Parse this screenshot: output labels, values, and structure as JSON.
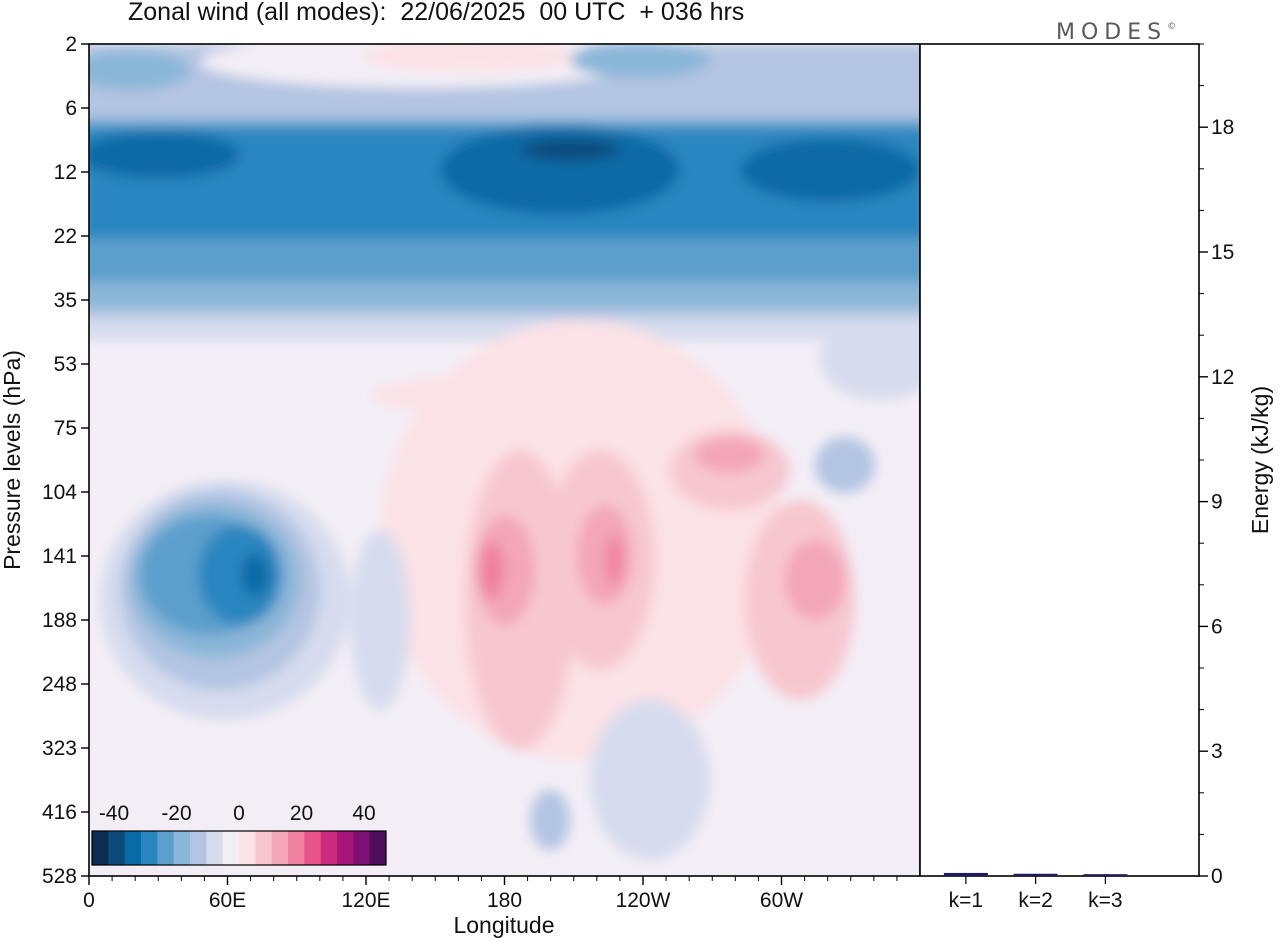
{
  "title": "Zonal wind (all modes):  22/06/2025  00 UTC  + 036 hrs",
  "logo": "MODES",
  "logo_mark": "©",
  "chart_data": [
    {
      "type": "heatmap",
      "title": "Zonal wind (all modes):  22/06/2025  00 UTC  + 036 hrs",
      "xlabel": "Longitude",
      "ylabel": "Pressure levels (hPa)",
      "x_ticks": [
        "0",
        "60E",
        "120E",
        "180",
        "120W",
        "60W"
      ],
      "y_ticks": [
        "2",
        "6",
        "12",
        "22",
        "35",
        "53",
        "75",
        "104",
        "141",
        "188",
        "248",
        "323",
        "416",
        "528"
      ],
      "y_scale": "log",
      "colorbar": {
        "labels": [
          "-40",
          "-20",
          "0",
          "20",
          "40"
        ],
        "colors": [
          "#0b2d4f",
          "#0c4a7c",
          "#0a6aa6",
          "#2a86c0",
          "#5c9fcc",
          "#8ab6d8",
          "#b3c5e2",
          "#d6dcee",
          "#f3eef6",
          "#fbe2e6",
          "#f7c7cf",
          "#f3a6b7",
          "#ef80a0",
          "#e6548b",
          "#cc2a7e",
          "#a8157a",
          "#7e0f74",
          "#4d0c5c"
        ]
      },
      "features": [
        {
          "name": "stratospheric easterly jet",
          "pressure_hPa": [
            6,
            35
          ],
          "longitude": "all",
          "u": "-10 to -35"
        },
        {
          "name": "easterly core",
          "pressure_hPa": [
            104,
            248
          ],
          "longitude": "40E-90E",
          "u": "about -30"
        },
        {
          "name": "westerly maxima",
          "pressure_hPa": [
            104,
            248
          ],
          "longitude": "170E-60W",
          "u": "about +20"
        }
      ]
    },
    {
      "type": "bar",
      "ylabel": "Energy (kJ/kg)",
      "categories": [
        "k=1",
        "k=2",
        "k=3"
      ],
      "values": [
        0.05,
        0.03,
        0.02
      ],
      "ylim": [
        0,
        20
      ],
      "y_ticks": [
        "0",
        "3",
        "6",
        "9",
        "12",
        "15",
        "18"
      ],
      "bar_color": "#1b1b5e"
    }
  ]
}
